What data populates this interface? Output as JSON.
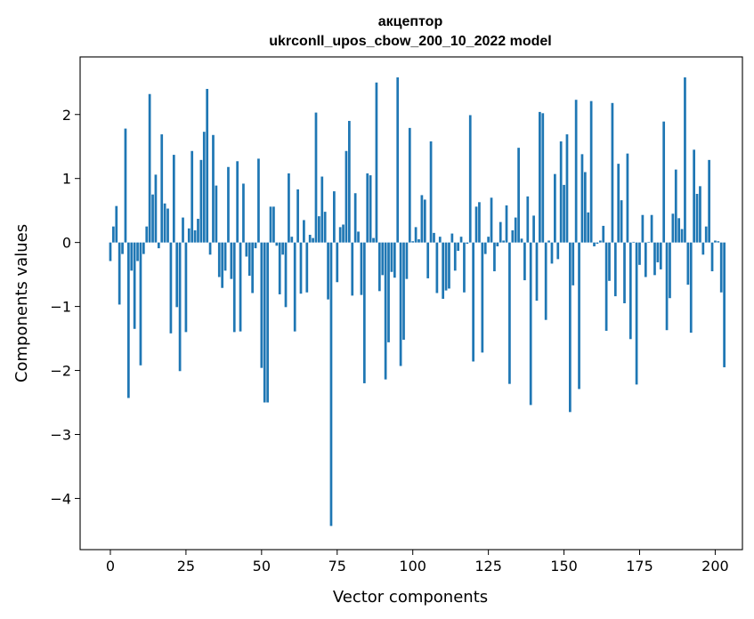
{
  "chart_data": {
    "type": "bar",
    "title": "акцептор",
    "subtitle": "ukrconll_upos_cbow_200_10_2022 model",
    "xlabel": "Vector components",
    "ylabel": "Components values",
    "xlim": [
      -10,
      209
    ],
    "ylim": [
      -4.8,
      2.9
    ],
    "xticks": [
      0,
      25,
      50,
      75,
      100,
      125,
      150,
      175,
      200
    ],
    "xtick_labels": [
      "0",
      "25",
      "50",
      "75",
      "100",
      "125",
      "150",
      "175",
      "200"
    ],
    "yticks": [
      -4,
      -3,
      -2,
      -1,
      0,
      1,
      2
    ],
    "ytick_labels": [
      "−4",
      "−3",
      "−2",
      "−1",
      "0",
      "1",
      "2"
    ],
    "bar_color": "#1f77b4",
    "grid": false,
    "values": [
      -0.29,
      0.25,
      0.57,
      -0.97,
      -0.18,
      1.78,
      -2.43,
      -0.44,
      -1.35,
      -0.29,
      -1.92,
      -0.18,
      0.25,
      2.32,
      0.75,
      1.06,
      -0.09,
      1.69,
      0.61,
      0.53,
      -1.42,
      1.37,
      -1.01,
      -2.01,
      0.39,
      -1.4,
      0.22,
      1.43,
      0.19,
      0.37,
      1.29,
      1.73,
      2.4,
      -0.19,
      1.68,
      0.89,
      -0.54,
      -0.71,
      -0.44,
      1.18,
      -0.57,
      -1.4,
      1.27,
      -1.39,
      0.92,
      -0.22,
      -0.52,
      -0.79,
      -0.09,
      1.31,
      -1.96,
      -2.5,
      -2.5,
      0.56,
      0.56,
      -0.05,
      -0.81,
      -0.19,
      -1.01,
      1.08,
      0.09,
      -1.39,
      0.83,
      -0.8,
      0.35,
      -0.78,
      0.12,
      0.07,
      2.03,
      0.41,
      1.03,
      0.48,
      -0.89,
      -4.43,
      0.8,
      -0.62,
      0.24,
      0.28,
      1.43,
      1.9,
      -0.83,
      0.77,
      0.17,
      -0.82,
      -2.2,
      1.08,
      1.05,
      0.07,
      2.5,
      -0.76,
      -0.51,
      -2.14,
      -1.56,
      -0.46,
      -0.55,
      2.58,
      -1.93,
      -1.52,
      -0.57,
      1.79,
      0.02,
      0.24,
      0.05,
      0.74,
      0.67,
      -0.56,
      1.58,
      0.15,
      -0.79,
      0.09,
      -0.88,
      -0.75,
      -0.72,
      0.14,
      -0.44,
      -0.13,
      0.09,
      -0.78,
      -0.02,
      1.99,
      -1.86,
      0.56,
      0.63,
      -1.72,
      -0.18,
      0.09,
      0.7,
      -0.45,
      -0.06,
      0.32,
      0.03,
      0.58,
      -2.21,
      0.19,
      0.39,
      1.48,
      0.06,
      -0.59,
      0.72,
      -2.54,
      0.42,
      -0.91,
      2.04,
      2.02,
      -1.21,
      0.03,
      -0.33,
      1.07,
      -0.26,
      1.58,
      0.9,
      1.69,
      -2.65,
      -0.67,
      2.23,
      -2.29,
      1.38,
      1.1,
      0.47,
      2.21,
      -0.06,
      -0.02,
      0.03,
      0.26,
      -1.38,
      -0.6,
      2.18,
      -0.84,
      1.23,
      0.66,
      -0.95,
      1.39,
      -1.51,
      0.01,
      -2.22,
      -0.35,
      0.43,
      -0.54,
      0.01,
      0.43,
      -0.51,
      -0.31,
      -0.42,
      1.89,
      -1.37,
      -0.87,
      0.45,
      1.14,
      0.38,
      0.21,
      2.58,
      -0.66,
      -1.41,
      1.45,
      0.76,
      0.88,
      -0.19,
      0.25,
      1.29,
      -0.45,
      0.03,
      0.02,
      -0.78,
      -1.95
    ]
  }
}
